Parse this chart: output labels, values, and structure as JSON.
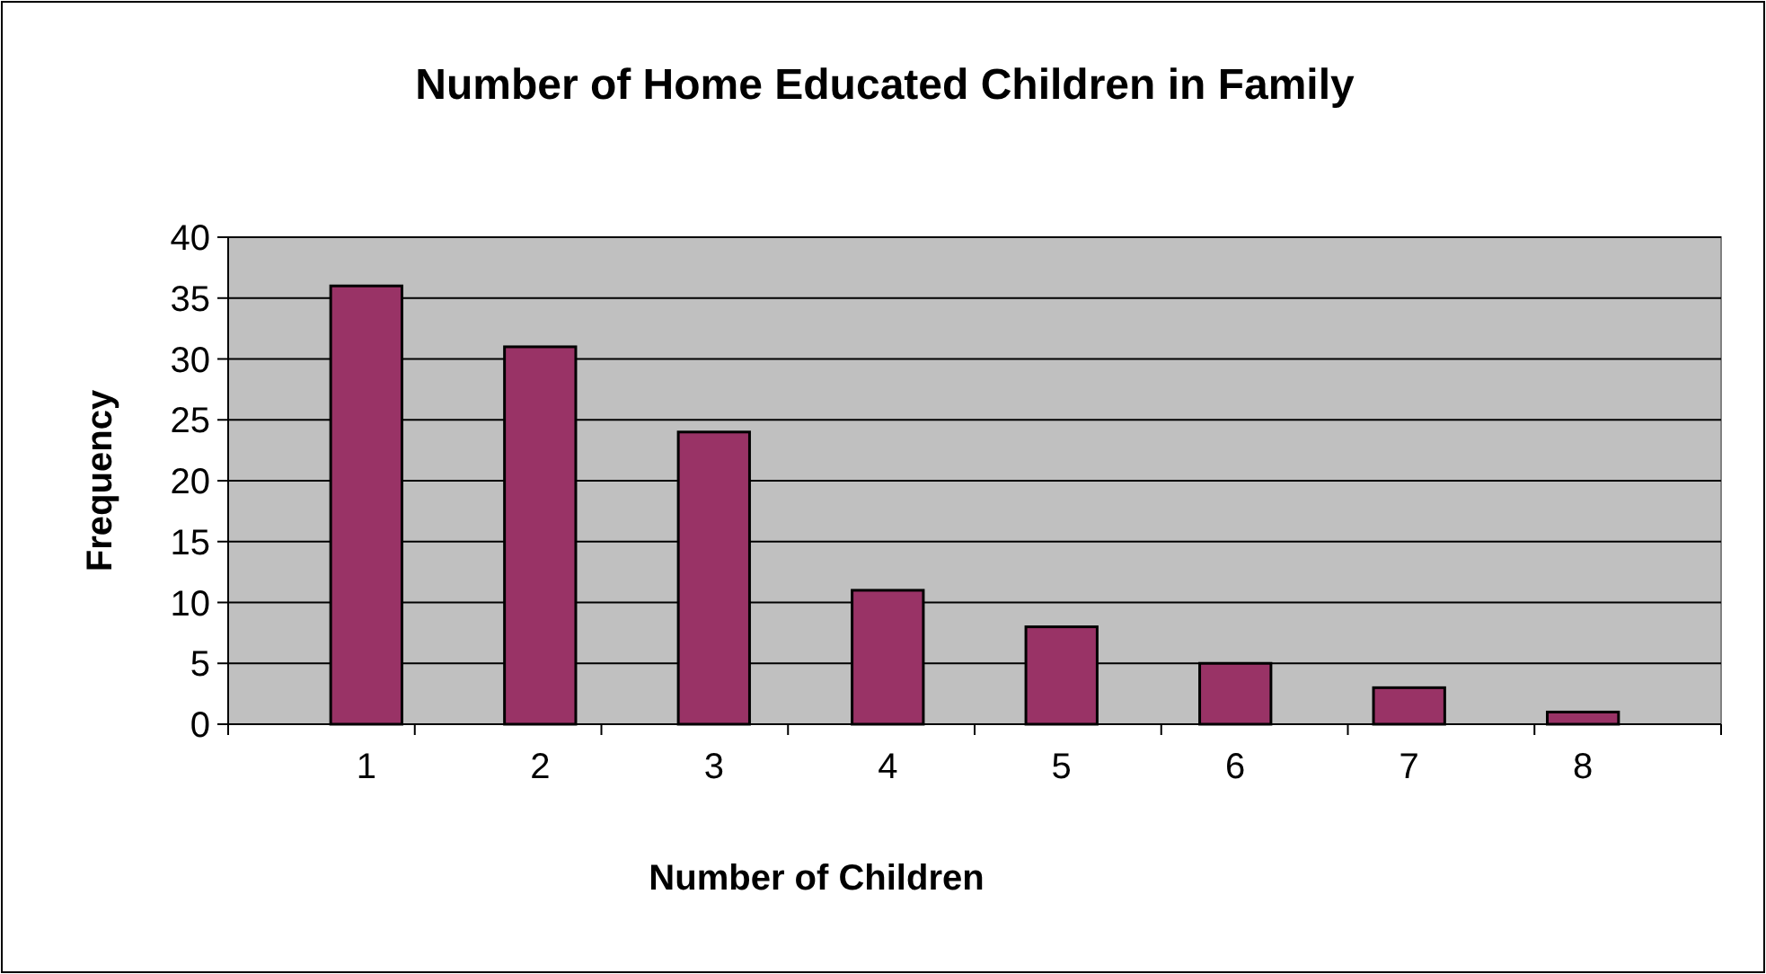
{
  "chart_data": {
    "type": "bar",
    "title": "Number of Home Educated Children in Family",
    "xlabel": "Number of Children",
    "ylabel": "Frequency",
    "categories": [
      "1",
      "2",
      "3",
      "4",
      "5",
      "6",
      "7",
      "8"
    ],
    "values": [
      36,
      31,
      24,
      11,
      8,
      5,
      3,
      1
    ],
    "color": "#993366",
    "ylim": [
      0,
      40
    ],
    "yticks": [
      0,
      5,
      10,
      15,
      20,
      25,
      30,
      35,
      40
    ],
    "grid": "y"
  }
}
